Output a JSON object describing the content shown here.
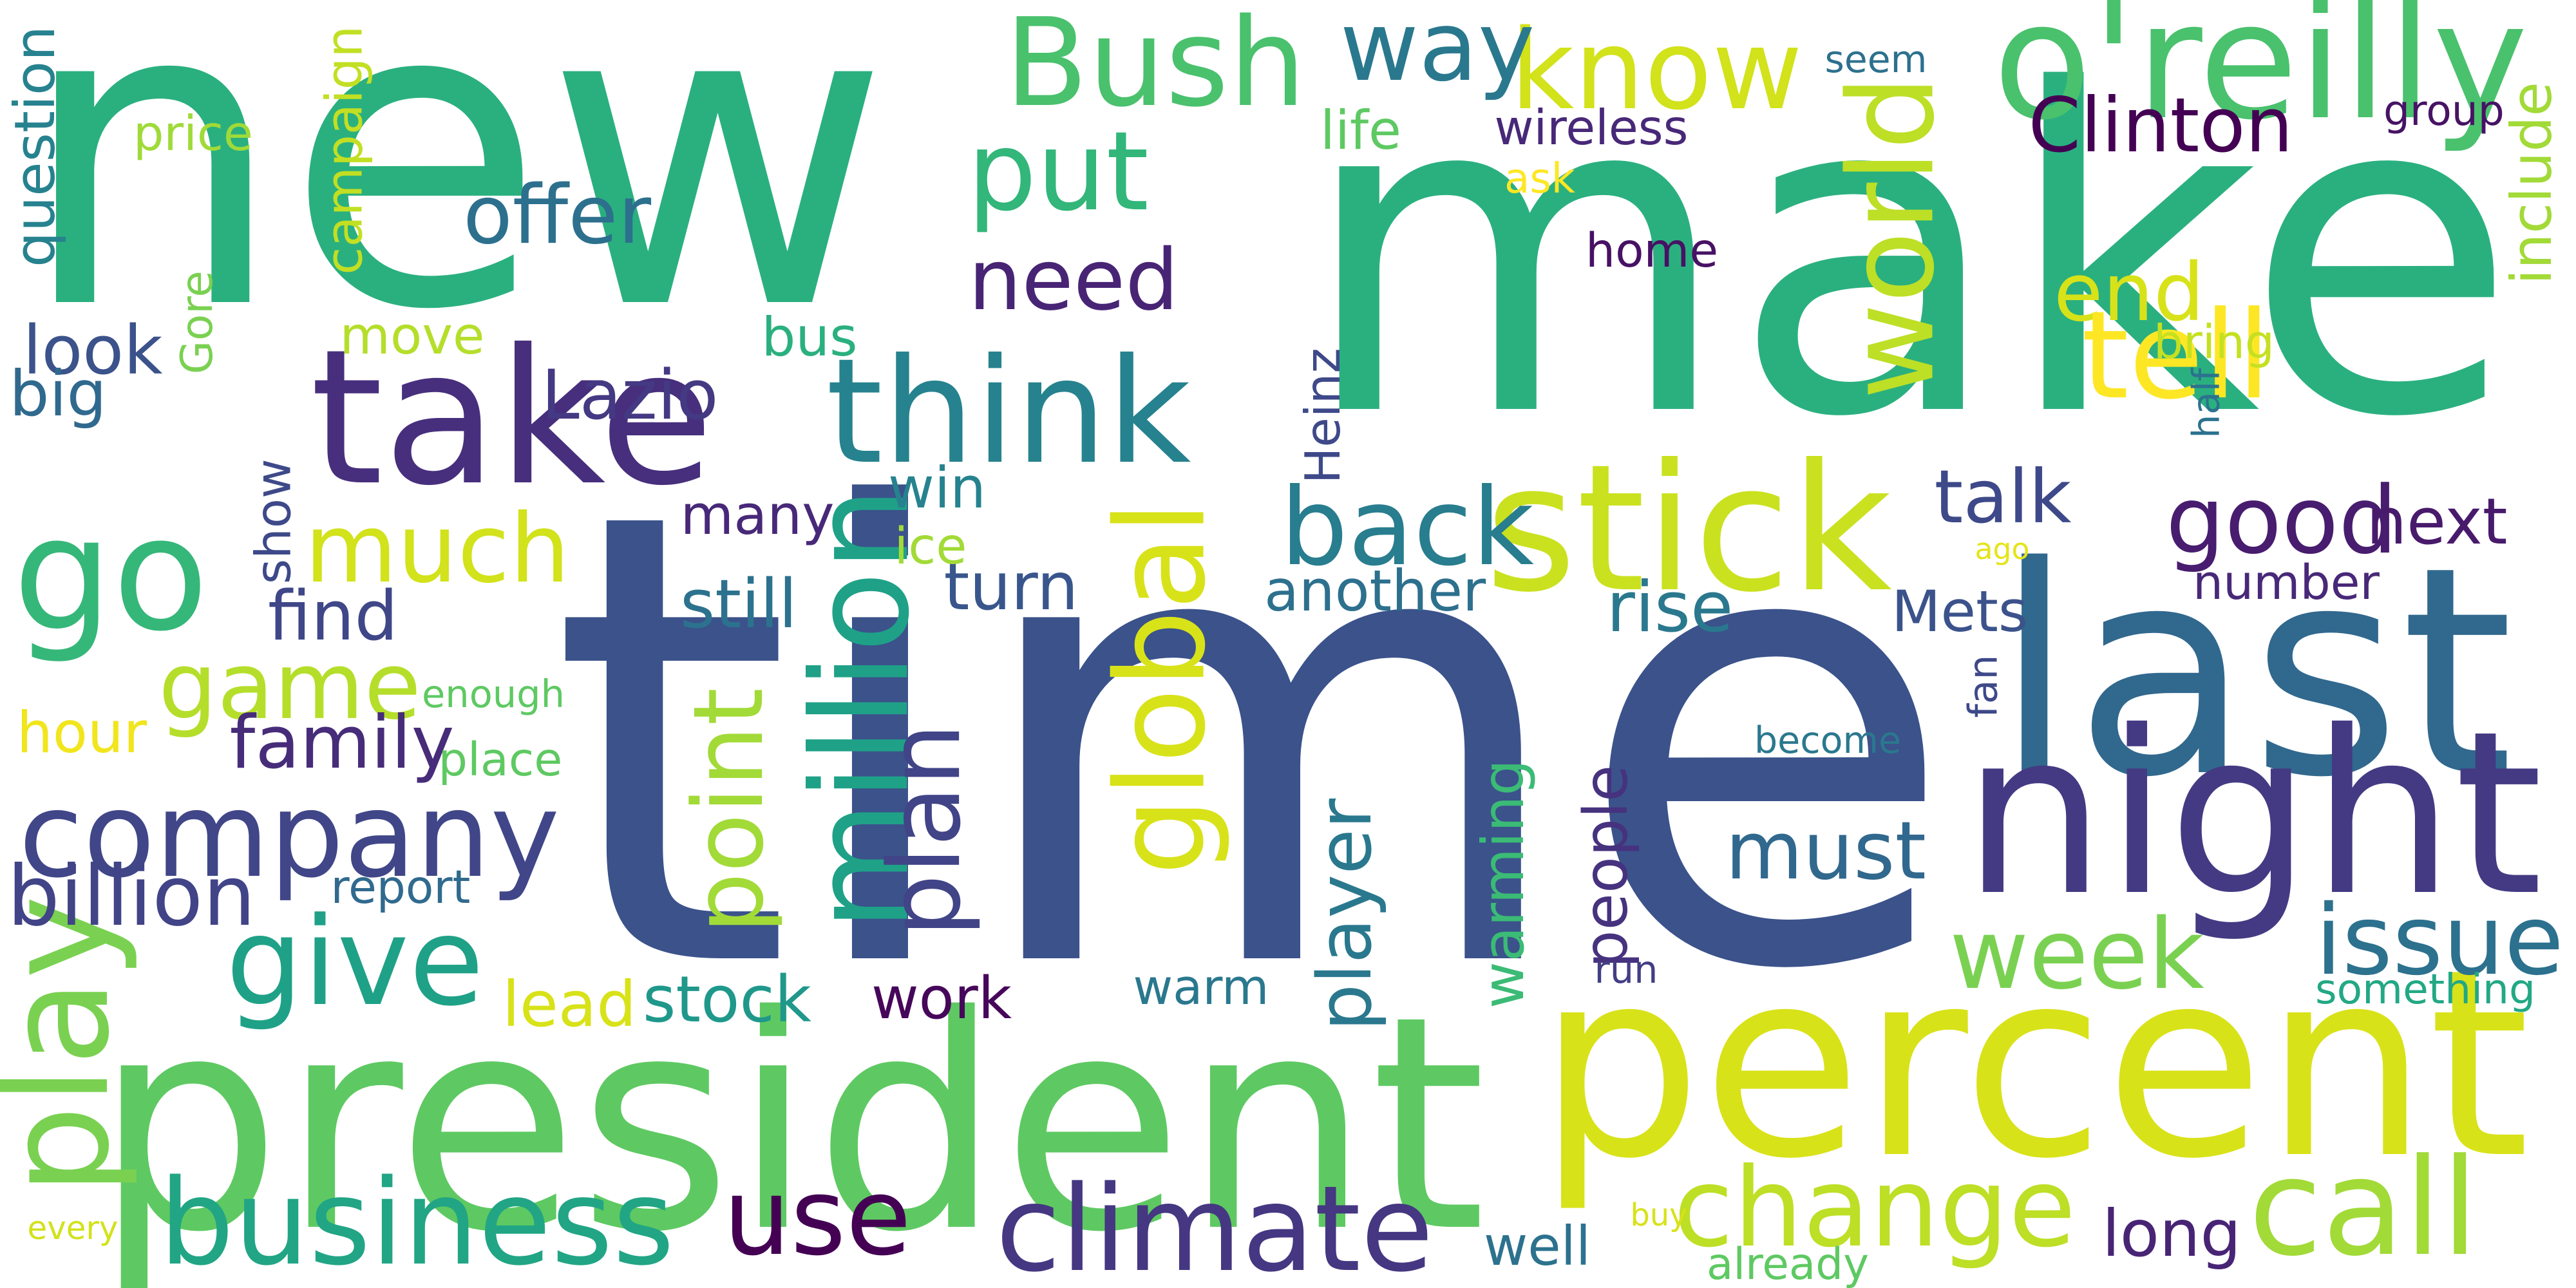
{
  "words": [
    {
      "text": "time",
      "color": "#3b528b"
    },
    {
      "text": "make",
      "color": "#2ab07f"
    },
    {
      "text": "new",
      "color": "#2ab07f"
    },
    {
      "text": "president",
      "color": "#5ec962"
    },
    {
      "text": "percent",
      "color": "#d8e219"
    },
    {
      "text": "take",
      "color": "#472f7d"
    },
    {
      "text": "last",
      "color": "#31688e"
    },
    {
      "text": "night",
      "color": "#443a83"
    },
    {
      "text": "go",
      "color": "#35b779"
    },
    {
      "text": "company",
      "color": "#404688"
    },
    {
      "text": "business",
      "color": "#21a585"
    },
    {
      "text": "climate",
      "color": "#453781"
    },
    {
      "text": "change",
      "color": "#bddf26"
    },
    {
      "text": "call",
      "color": "#a2da37"
    },
    {
      "text": "use",
      "color": "#440154"
    },
    {
      "text": "Bush",
      "color": "#4ac16d"
    },
    {
      "text": "know",
      "color": "#d2e21b"
    },
    {
      "text": "o'reilly",
      "color": "#4ac16d"
    },
    {
      "text": "think",
      "color": "#26828e"
    },
    {
      "text": "stick",
      "color": "#cae11f"
    },
    {
      "text": "back",
      "color": "#287d8e"
    },
    {
      "text": "good",
      "color": "#481c6e"
    },
    {
      "text": "much",
      "color": "#d2e21b"
    },
    {
      "text": "Gore",
      "color": "#7ad151"
    },
    {
      "text": "million",
      "color": "#1fa187"
    },
    {
      "text": "global",
      "color": "#d8e219"
    },
    {
      "text": "put",
      "color": "#32b67a"
    },
    {
      "text": "need",
      "color": "#482475"
    },
    {
      "text": "world",
      "color": "#bddf26"
    },
    {
      "text": "week",
      "color": "#7ad151"
    },
    {
      "text": "way",
      "color": "#2a788e"
    },
    {
      "text": "give",
      "color": "#1fa187"
    },
    {
      "text": "game",
      "color": "#b5de2b"
    },
    {
      "text": "play",
      "color": "#7ad151"
    },
    {
      "text": "end",
      "color": "#d8e219"
    },
    {
      "text": "tell",
      "color": "#fde725"
    },
    {
      "text": "issue",
      "color": "#2c718e"
    },
    {
      "text": "must",
      "color": "#31688e"
    },
    {
      "text": "talk",
      "color": "#3e4989"
    },
    {
      "text": "point",
      "color": "#a2da37"
    },
    {
      "text": "plan",
      "color": "#414487"
    },
    {
      "text": "family",
      "color": "#472c7a"
    },
    {
      "text": "Clinton",
      "color": "#440154"
    },
    {
      "text": "offer",
      "color": "#2d708e"
    },
    {
      "text": "many",
      "color": "#482878"
    },
    {
      "text": "Lazio",
      "color": "#443983"
    },
    {
      "text": "look",
      "color": "#3b528b"
    },
    {
      "text": "billion",
      "color": "#414487"
    },
    {
      "text": "long",
      "color": "#482475"
    },
    {
      "text": "well",
      "color": "#2c728e"
    },
    {
      "text": "player",
      "color": "#2a788e"
    },
    {
      "text": "warming",
      "color": "#3bbb75"
    },
    {
      "text": "next",
      "color": "#481a6c"
    },
    {
      "text": "number",
      "color": "#482878"
    },
    {
      "text": "work",
      "color": "#46075a"
    },
    {
      "text": "stock",
      "color": "#1f988b"
    },
    {
      "text": "another",
      "color": "#2d708e"
    },
    {
      "text": "rise",
      "color": "#2a788e"
    },
    {
      "text": "Mets",
      "color": "#3b528b"
    },
    {
      "text": "turn",
      "color": "#39568c"
    },
    {
      "text": "win",
      "color": "#26828e"
    },
    {
      "text": "question",
      "color": "#26828e"
    },
    {
      "text": "campaign",
      "color": "#c2df23"
    },
    {
      "text": "move",
      "color": "#b5de2b"
    },
    {
      "text": "show",
      "color": "#3e4989"
    },
    {
      "text": "find",
      "color": "#3f4788"
    },
    {
      "text": "hour",
      "color": "#f1e51d"
    },
    {
      "text": "people",
      "color": "#46327e"
    },
    {
      "text": "home",
      "color": "#471164"
    },
    {
      "text": "Heinz",
      "color": "#3e4989"
    },
    {
      "text": "warm",
      "color": "#2a788e"
    },
    {
      "text": "run",
      "color": "#433e85"
    },
    {
      "text": "lead",
      "color": "#d8e219"
    },
    {
      "text": "ago",
      "color": "#e5e419"
    },
    {
      "text": "big",
      "color": "#30698e"
    },
    {
      "text": "bus",
      "color": "#2ab07f"
    },
    {
      "text": "include",
      "color": "#a2da37"
    },
    {
      "text": "ice",
      "color": "#a2da37"
    },
    {
      "text": "wireless",
      "color": "#482878"
    },
    {
      "text": "group",
      "color": "#471365"
    },
    {
      "text": "price",
      "color": "#a0da39"
    },
    {
      "text": "enough",
      "color": "#5ec962"
    },
    {
      "text": "place",
      "color": "#5ec962"
    },
    {
      "text": "report",
      "color": "#306a8e"
    },
    {
      "text": "become",
      "color": "#2a788e"
    },
    {
      "text": "something",
      "color": "#22a884"
    },
    {
      "text": "already",
      "color": "#5ec962"
    },
    {
      "text": "buy",
      "color": "#d8e219"
    },
    {
      "text": "every",
      "color": "#d2e21b"
    },
    {
      "text": "still",
      "color": "#2c728e"
    },
    {
      "text": "seem",
      "color": "#2d708e"
    },
    {
      "text": "life",
      "color": "#5ec962"
    },
    {
      "text": "ask",
      "color": "#fde725"
    },
    {
      "text": "bring",
      "color": "#c5e021"
    },
    {
      "text": "half",
      "color": "#2c728e"
    },
    {
      "text": "fan",
      "color": "#3e4989"
    }
  ]
}
